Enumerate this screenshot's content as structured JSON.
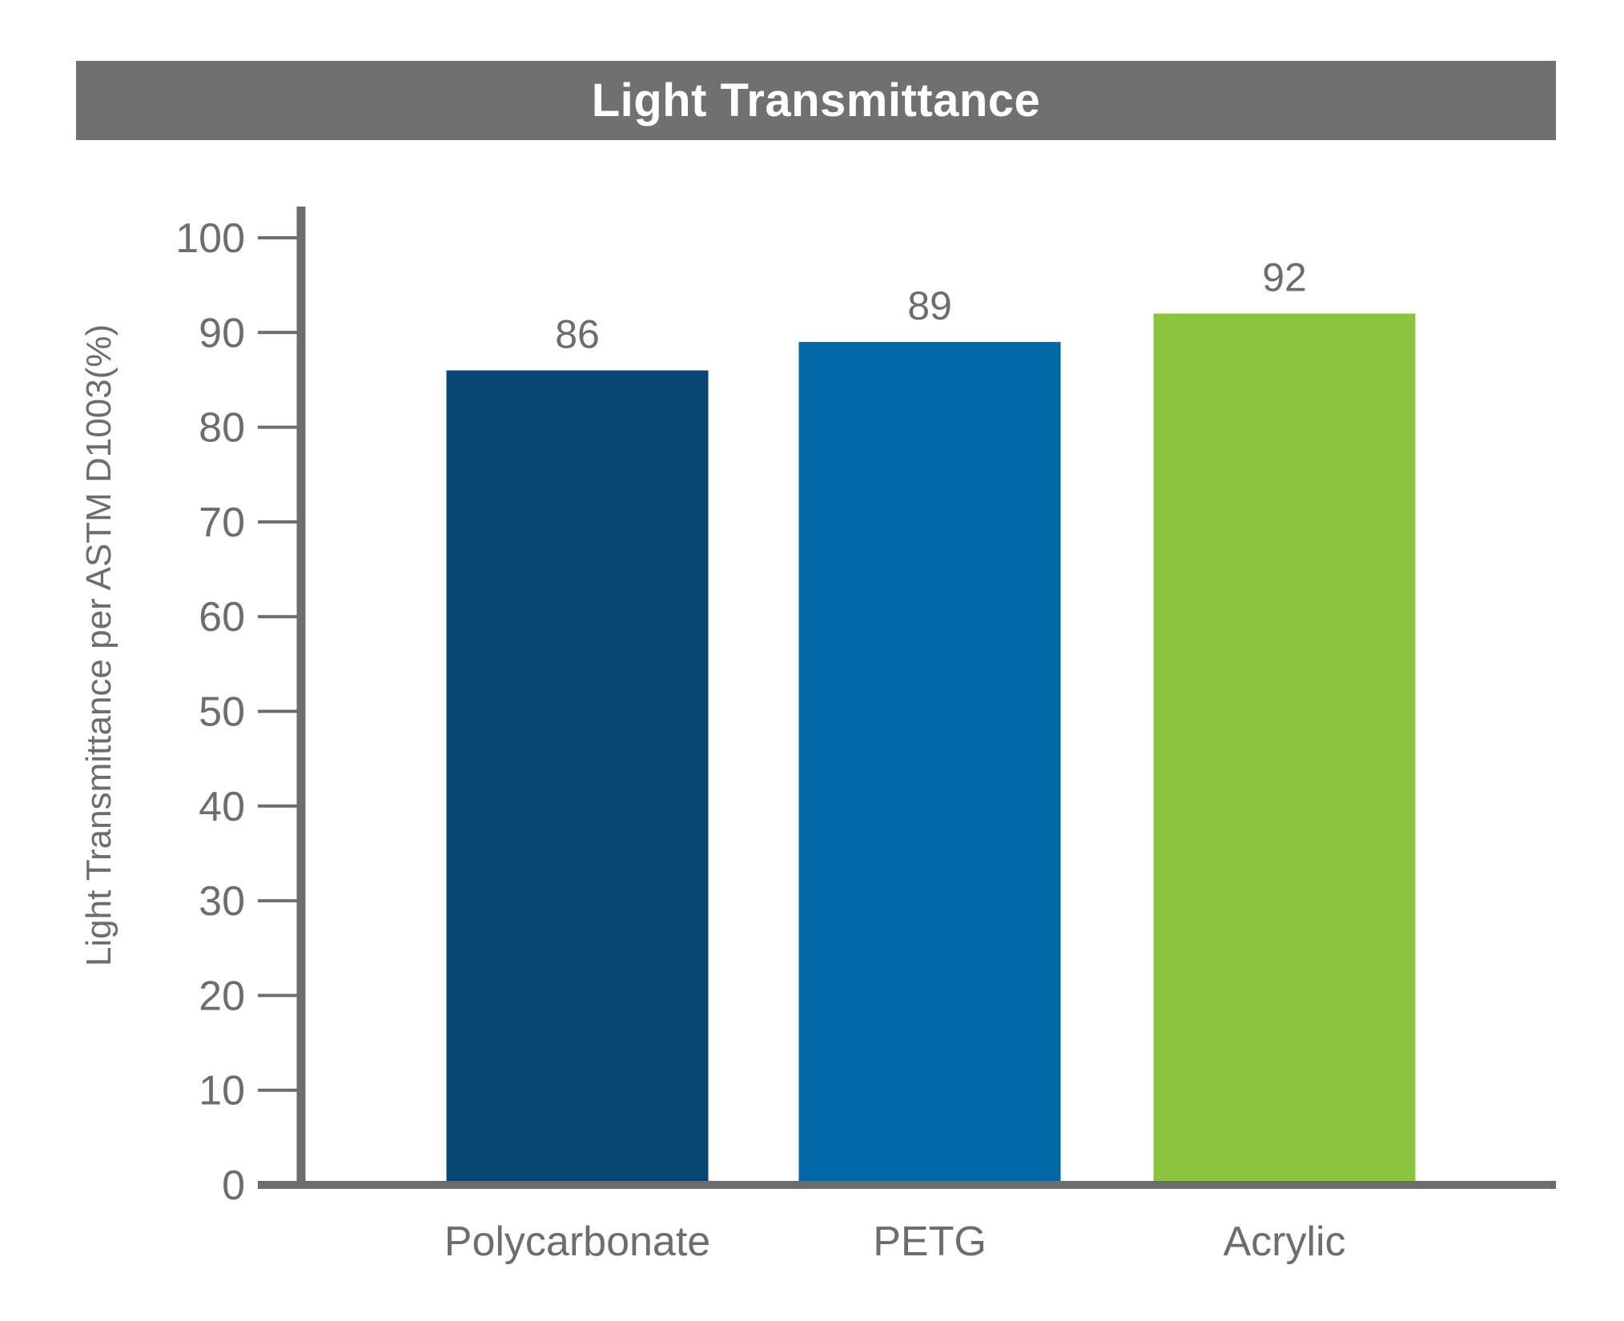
{
  "chart_data": {
    "type": "bar",
    "title": "Light Transmittance",
    "xlabel": "",
    "ylabel": "Light Transmittance per ASTM D1003(%)",
    "categories": [
      "Polycarbonate",
      "PETG",
      "Acrylic"
    ],
    "values": [
      86,
      89,
      92
    ],
    "value_labels": [
      "86",
      "89",
      "92"
    ],
    "colors": [
      "#084673",
      "#0068a5",
      "#8bc43f"
    ],
    "ylim": [
      0,
      100
    ],
    "yticks": [
      0,
      10,
      20,
      30,
      40,
      50,
      60,
      70,
      80,
      90,
      100
    ],
    "grid": false,
    "legend": "none",
    "axis_color": "#6d6d6d",
    "title_bar_color": "#707070"
  }
}
